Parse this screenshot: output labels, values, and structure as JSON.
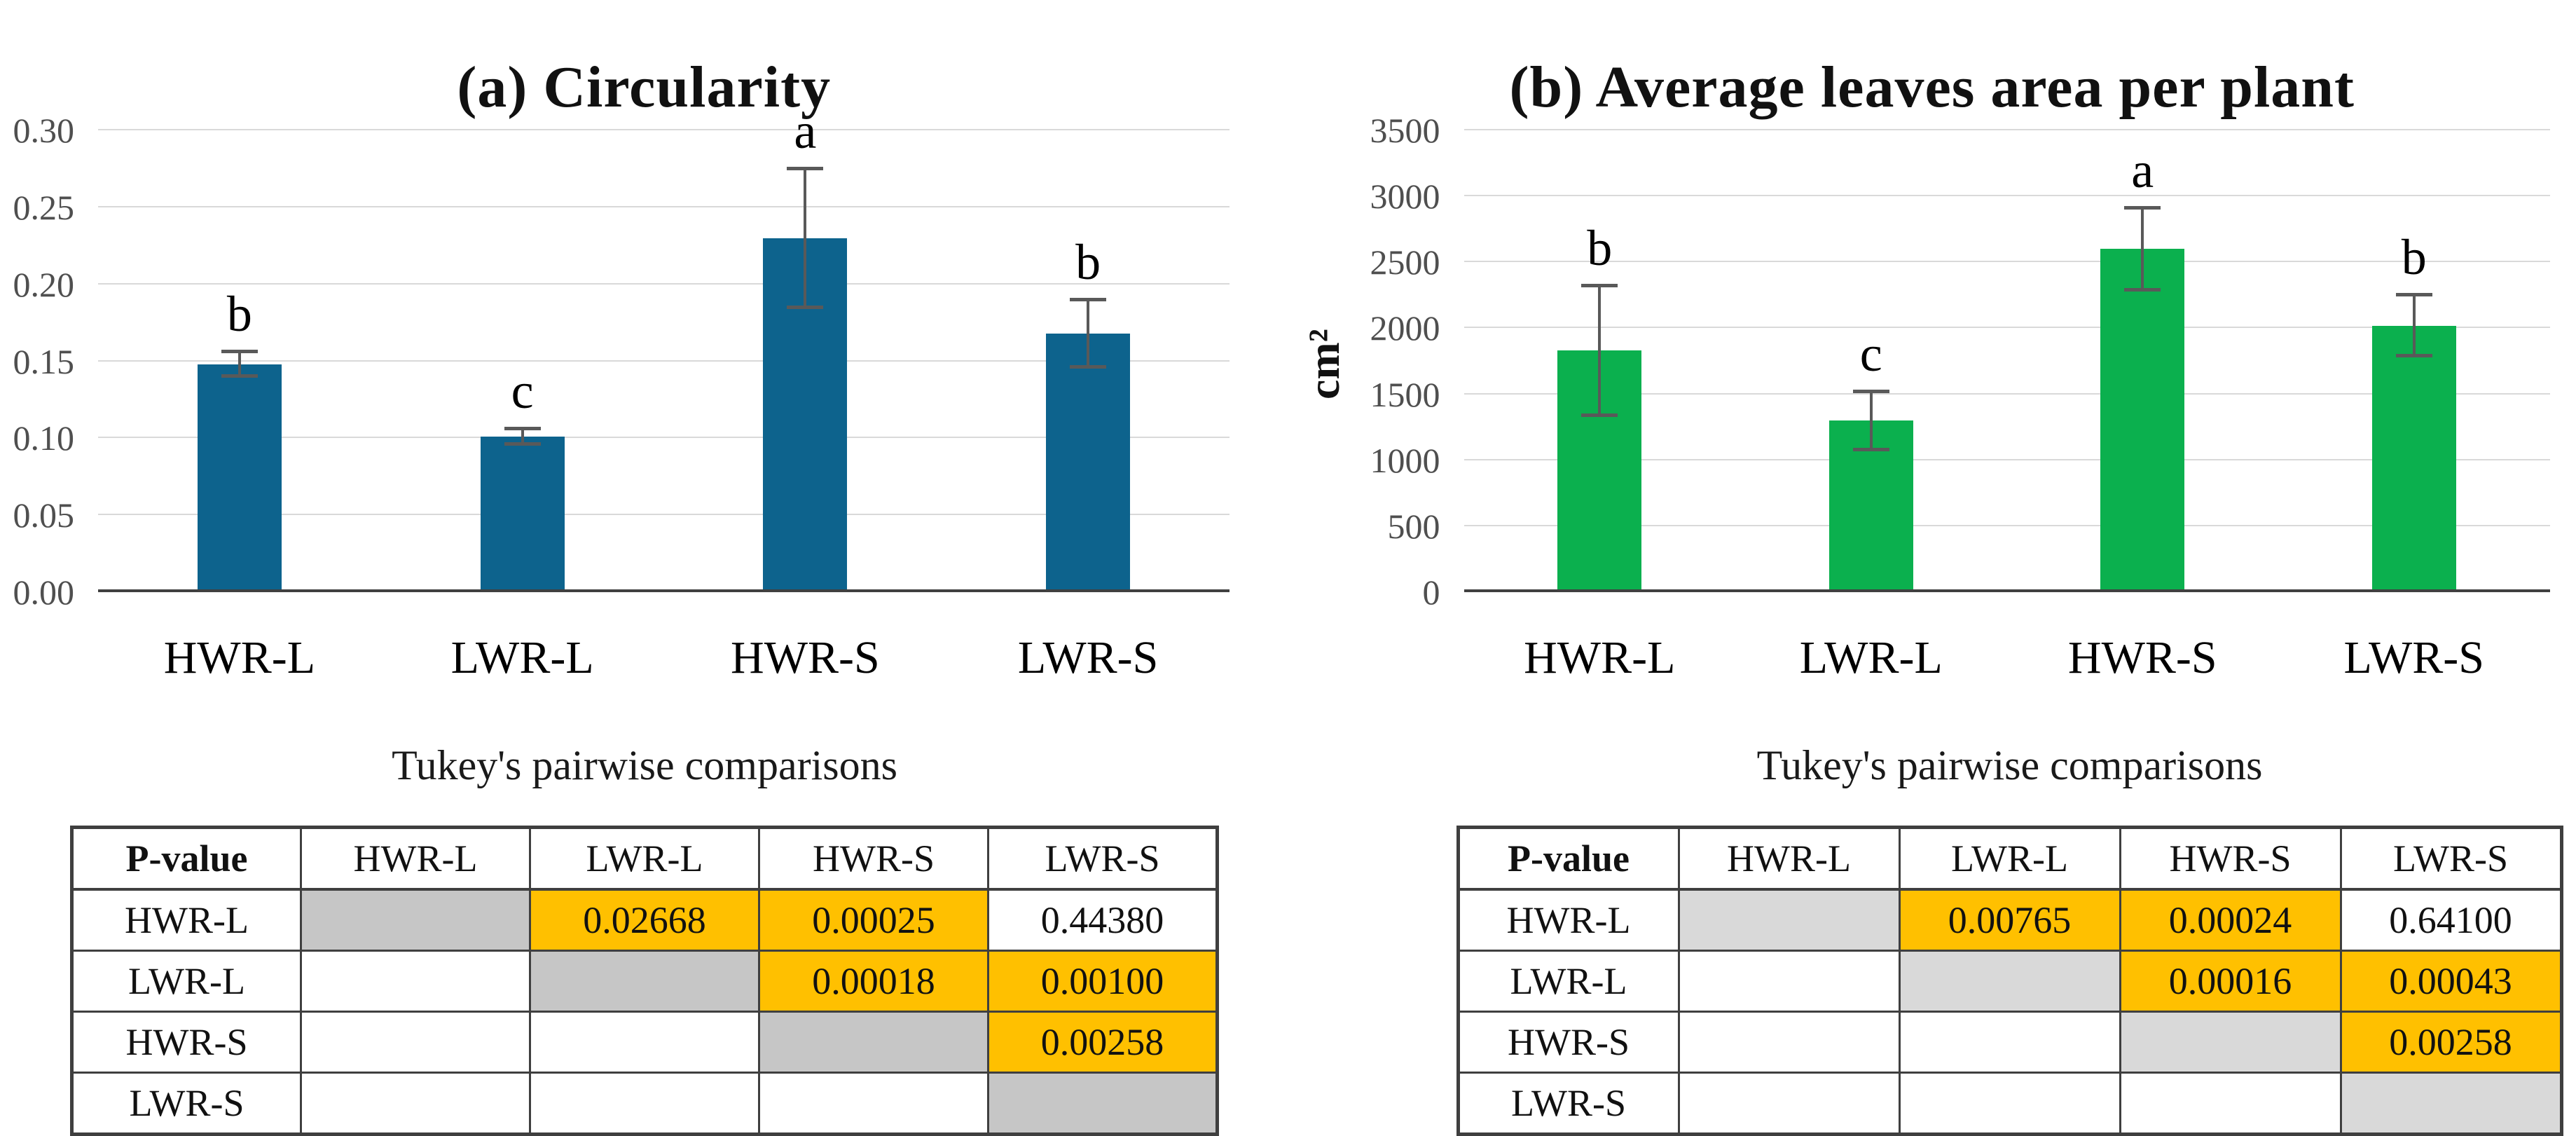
{
  "figure": {
    "panels": [
      {
        "panel_label": "a",
        "title": "(a) Circularity",
        "ylabel": "",
        "chart_data": {
          "type": "bar",
          "title": "(a) Circularity",
          "categories": [
            "HWR-L",
            "LWR-L",
            "HWR-S",
            "LWR-S"
          ],
          "values": [
            0.148,
            0.101,
            0.23,
            0.168
          ],
          "errors": [
            0.008,
            0.005,
            0.045,
            0.022
          ],
          "sig_letters": [
            "b",
            "c",
            "a",
            "b"
          ],
          "xlabel": "",
          "ylabel": "",
          "ylim": [
            0,
            0.3
          ],
          "yticks": [
            0,
            0.05,
            0.1,
            0.15,
            0.2,
            0.25,
            0.3
          ],
          "ytick_labels": [
            "0.00",
            "0.05",
            "0.10",
            "0.15",
            "0.20",
            "0.25",
            "0.30"
          ],
          "grid": true,
          "legend": false,
          "bar_color": "#0D638D",
          "error_color": "#595959"
        },
        "table": {
          "title": "Tukey's pairwise comparisons",
          "header": [
            "P-value",
            "HWR-L",
            "LWR-L",
            "HWR-S",
            "LWR-S"
          ],
          "rows": [
            {
              "label": "HWR-L",
              "cells": [
                {
                  "t": "",
                  "s": "diag"
                },
                {
                  "t": "0.02668",
                  "s": "sig"
                },
                {
                  "t": "0.00025",
                  "s": "sig"
                },
                {
                  "t": "0.44380",
                  "s": "plain"
                }
              ]
            },
            {
              "label": "LWR-L",
              "cells": [
                {
                  "t": "",
                  "s": "plain"
                },
                {
                  "t": "",
                  "s": "diag"
                },
                {
                  "t": "0.00018",
                  "s": "sig"
                },
                {
                  "t": "0.00100",
                  "s": "sig"
                }
              ]
            },
            {
              "label": "HWR-S",
              "cells": [
                {
                  "t": "",
                  "s": "plain"
                },
                {
                  "t": "",
                  "s": "plain"
                },
                {
                  "t": "",
                  "s": "diag"
                },
                {
                  "t": "0.00258",
                  "s": "sig"
                }
              ]
            },
            {
              "label": "LWR-S",
              "cells": [
                {
                  "t": "",
                  "s": "plain"
                },
                {
                  "t": "",
                  "s": "plain"
                },
                {
                  "t": "",
                  "s": "plain"
                },
                {
                  "t": "",
                  "s": "diag"
                }
              ]
            }
          ],
          "diag_color": "#C6C6C6",
          "highlight_color": "#FFC000"
        }
      },
      {
        "panel_label": "b",
        "title": "(b) Average leaves area per plant",
        "ylabel": "cm²",
        "chart_data": {
          "type": "bar",
          "title": "(b) Average leaves area per plant",
          "categories": [
            "HWR-L",
            "LWR-L",
            "HWR-S",
            "LWR-S"
          ],
          "values": [
            1830,
            1300,
            2600,
            2020
          ],
          "errors": [
            490,
            220,
            310,
            230
          ],
          "sig_letters": [
            "b",
            "c",
            "a",
            "b"
          ],
          "xlabel": "",
          "ylabel": "cm²",
          "ylim": [
            0,
            3500
          ],
          "yticks": [
            0,
            500,
            1000,
            1500,
            2000,
            2500,
            3000,
            3500
          ],
          "ytick_labels": [
            "0",
            "500",
            "1000",
            "1500",
            "2000",
            "2500",
            "3000",
            "3500"
          ],
          "grid": true,
          "legend": false,
          "bar_color": "#0BB04E",
          "error_color": "#595959"
        },
        "table": {
          "title": "Tukey's pairwise comparisons",
          "header": [
            "P-value",
            "HWR-L",
            "LWR-L",
            "HWR-S",
            "LWR-S"
          ],
          "rows": [
            {
              "label": "HWR-L",
              "cells": [
                {
                  "t": "",
                  "s": "diag"
                },
                {
                  "t": "0.00765",
                  "s": "sig"
                },
                {
                  "t": "0.00024",
                  "s": "sig"
                },
                {
                  "t": "0.64100",
                  "s": "plain"
                }
              ]
            },
            {
              "label": "LWR-L",
              "cells": [
                {
                  "t": "",
                  "s": "plain"
                },
                {
                  "t": "",
                  "s": "diag"
                },
                {
                  "t": "0.00016",
                  "s": "sig"
                },
                {
                  "t": "0.00043",
                  "s": "sig"
                }
              ]
            },
            {
              "label": "HWR-S",
              "cells": [
                {
                  "t": "",
                  "s": "plain"
                },
                {
                  "t": "",
                  "s": "plain"
                },
                {
                  "t": "",
                  "s": "diag"
                },
                {
                  "t": "0.00258",
                  "s": "sig"
                }
              ]
            },
            {
              "label": "LWR-S",
              "cells": [
                {
                  "t": "",
                  "s": "plain"
                },
                {
                  "t": "",
                  "s": "plain"
                },
                {
                  "t": "",
                  "s": "plain"
                },
                {
                  "t": "",
                  "s": "diag"
                }
              ]
            }
          ],
          "diag_color": "#D9D9D9",
          "highlight_color": "#FFC000"
        }
      }
    ]
  }
}
